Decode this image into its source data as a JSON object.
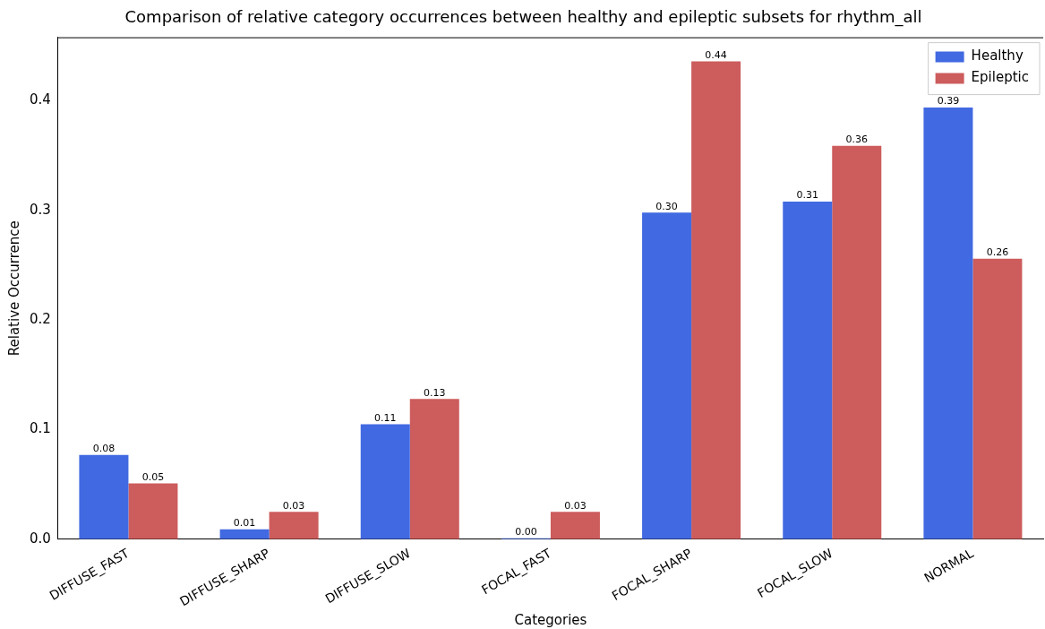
{
  "chart_data": {
    "type": "bar",
    "title": "Comparison of relative category occurrences between healthy and epileptic subsets for rhythm_all",
    "xlabel": "Categories",
    "ylabel": "Relative Occurrence",
    "categories": [
      "DIFFUSE_FAST",
      "DIFFUSE_SHARP",
      "DIFFUSE_SLOW",
      "FOCAL_FAST",
      "FOCAL_SHARP",
      "FOCAL_SLOW",
      "NORMAL"
    ],
    "series": [
      {
        "name": "Healthy",
        "color": "#4169e1",
        "values": [
          0.077,
          0.009,
          0.105,
          0,
          0.298,
          0.308,
          0.394
        ],
        "value_labels": [
          "0.08",
          "0.01",
          "0.11",
          "0.00",
          "0.30",
          "0.31",
          "0.39"
        ]
      },
      {
        "name": "Epileptic",
        "color": "#cd5c5c",
        "values": [
          0.051,
          0.025,
          0.128,
          0.025,
          0.436,
          0.359,
          0.256
        ],
        "value_labels": [
          "0.05",
          "0.03",
          "0.13",
          "0.03",
          "0.44",
          "0.36",
          "0.26"
        ]
      }
    ],
    "ylim": [
      0,
      0.458
    ],
    "yticks": [
      {
        "value": 0,
        "label": "0.0"
      },
      {
        "value": 0.1,
        "label": "0.1"
      },
      {
        "value": 0.2,
        "label": "0.2"
      },
      {
        "value": 0.3,
        "label": "0.3"
      },
      {
        "value": 0.4,
        "label": "0.4"
      }
    ],
    "legend": "top right",
    "grid": false
  }
}
